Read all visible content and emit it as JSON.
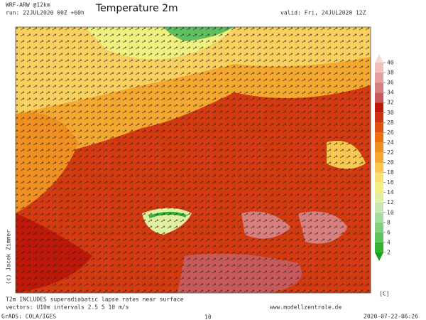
{
  "header": {
    "model": "WRF-ARW @12km",
    "run": "run: 22JUL2020 00Z +60h",
    "title": "Temperature 2m",
    "valid": "valid: Fri, 24JUL2020 12Z"
  },
  "colorbar": {
    "ticks": [
      2,
      4,
      6,
      8,
      10,
      12,
      14,
      16,
      18,
      20,
      22,
      24,
      26,
      28,
      30,
      32,
      34,
      36,
      38,
      40
    ],
    "colors": [
      "#1e9e1e",
      "#33b333",
      "#5cc45c",
      "#80d080",
      "#a6dca0",
      "#c6e8b0",
      "#e0f0a0",
      "#f0f080",
      "#f8e070",
      "#f8c850",
      "#f5a830",
      "#f09020",
      "#ea7010",
      "#e05010",
      "#d03010",
      "#c01808",
      "#c85a5a",
      "#d88080",
      "#e4a0a0",
      "#eec0c0",
      "#f6dada"
    ],
    "unit": "[C]"
  },
  "copyright": "(c) Jacek Zimmer",
  "footer": {
    "note": "T2m INCLUDES superadiabatic lapse rates near surface",
    "vectors": "vectors: U10m intervals 2.5 5 10 m/s",
    "site": "www.modellzentrale.de",
    "grads": "GrADS: COLA/IGES",
    "timestamp": "2020-07-22-06:26",
    "scale": "10"
  }
}
